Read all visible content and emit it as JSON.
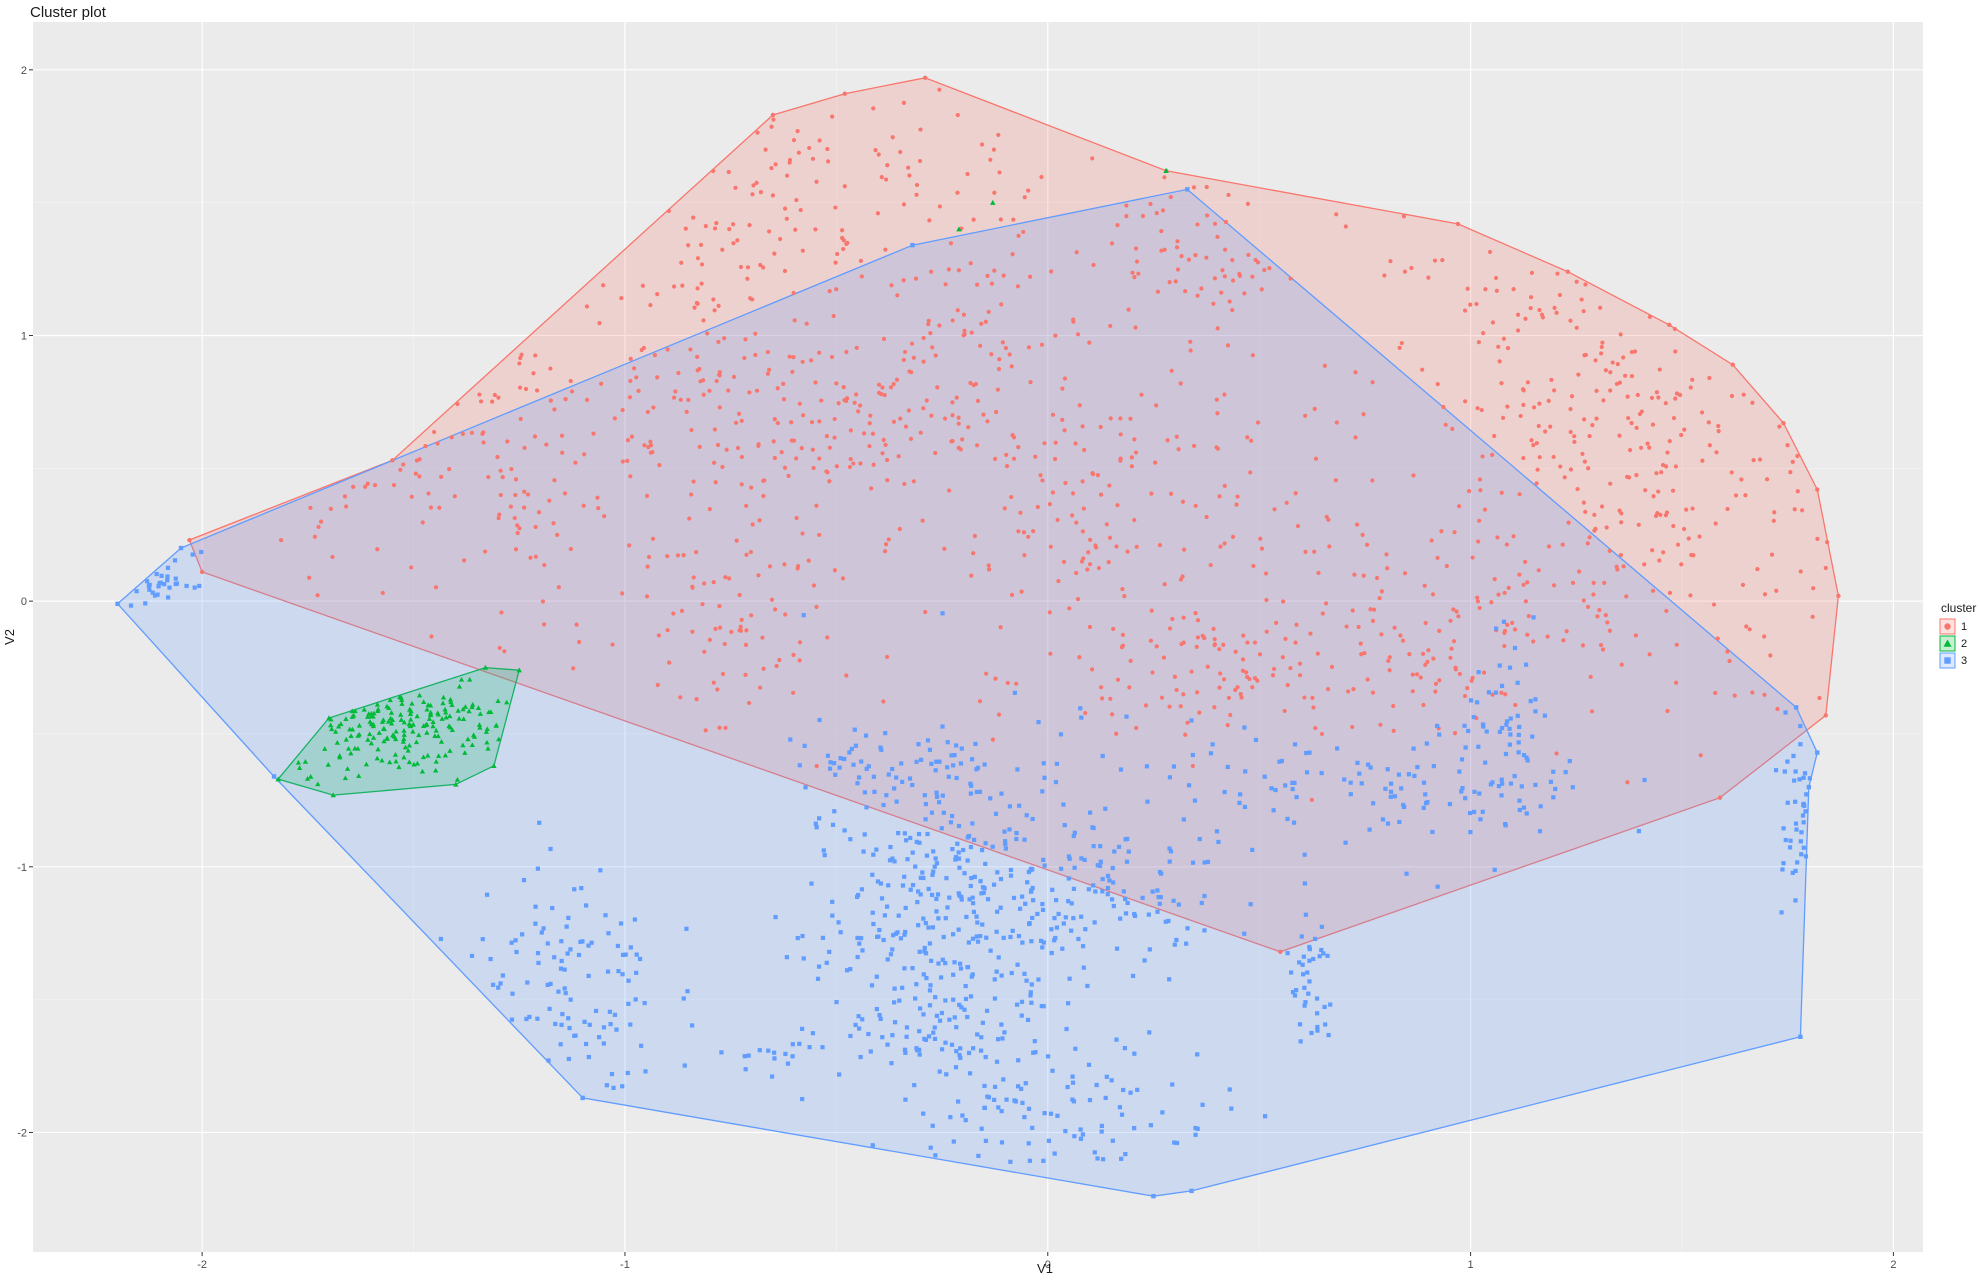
{
  "chart_data": {
    "type": "scatter",
    "title": "Cluster plot",
    "xlabel": "V1",
    "ylabel": "V2",
    "xlim": [
      -2.4,
      2.07
    ],
    "ylim": [
      -2.45,
      2.18
    ],
    "x_ticks": [
      -2,
      -1,
      0,
      1,
      2
    ],
    "y_ticks": [
      -2,
      -1,
      0,
      1,
      2
    ],
    "x_tick_labels": [
      "-2",
      "-1",
      "0",
      "1",
      "2"
    ],
    "y_tick_labels": [
      "-2",
      "-1",
      "0",
      "1",
      "2"
    ],
    "grid": true,
    "background": "#ebebeb",
    "legend": {
      "title": "cluster",
      "position": "right",
      "entries": [
        {
          "label": "1",
          "shape": "circle",
          "color": "#f8766d"
        },
        {
          "label": "2",
          "shape": "triangle",
          "color": "#00ba38"
        },
        {
          "label": "3",
          "shape": "square",
          "color": "#619cff"
        }
      ]
    },
    "clusters": [
      {
        "label": "1",
        "color": "#f8766d",
        "shape": "circle",
        "hull": [
          [
            -2.03,
            0.23
          ],
          [
            -1.55,
            0.53
          ],
          [
            -0.65,
            1.83
          ],
          [
            -0.48,
            1.91
          ],
          [
            -0.29,
            1.97
          ],
          [
            0.28,
            1.62
          ],
          [
            0.97,
            1.42
          ],
          [
            1.23,
            1.24
          ],
          [
            1.47,
            1.04
          ],
          [
            1.62,
            0.89
          ],
          [
            1.74,
            0.67
          ],
          [
            1.82,
            0.42
          ],
          [
            1.87,
            0.02
          ],
          [
            1.84,
            -0.43
          ],
          [
            1.59,
            -0.74
          ],
          [
            0.55,
            -1.32
          ],
          [
            -2.0,
            0.11
          ]
        ],
        "regions": [
          {
            "cx": -0.73,
            "cy": 1.35,
            "sx": 0.55,
            "sy": 0.45,
            "n": 260
          },
          {
            "cx": 1.35,
            "cy": 0.65,
            "sx": 0.32,
            "sy": 0.55,
            "n": 340
          },
          {
            "cx": -1.35,
            "cy": 0.48,
            "sx": 0.45,
            "sy": 0.28,
            "n": 150
          },
          {
            "cx": 0.15,
            "cy": 0.3,
            "sx": 0.22,
            "sy": 0.28,
            "n": 140
          },
          {
            "cx": 0.42,
            "cy": -0.28,
            "sx": 0.22,
            "sy": 0.16,
            "n": 110
          },
          {
            "cx": 0.95,
            "cy": -0.05,
            "sx": 0.18,
            "sy": 0.2,
            "n": 80
          },
          {
            "cx": -0.78,
            "cy": -0.15,
            "sx": 0.14,
            "sy": 0.22,
            "n": 70
          },
          {
            "cx": -0.3,
            "cy": 0.75,
            "sx": 0.18,
            "sy": 0.15,
            "n": 70
          },
          {
            "cx": 0.35,
            "cy": 1.3,
            "sx": 0.1,
            "sy": 0.2,
            "n": 60
          },
          {
            "cx": -0.6,
            "cy": 0.65,
            "sx": 0.22,
            "sy": 0.2,
            "n": 80
          }
        ]
      },
      {
        "label": "2",
        "color": "#00ba38",
        "shape": "triangle",
        "hull": [
          [
            -1.82,
            -0.67
          ],
          [
            -1.7,
            -0.44
          ],
          [
            -1.33,
            -0.25
          ],
          [
            -1.25,
            -0.26
          ],
          [
            -1.31,
            -0.62
          ],
          [
            -1.4,
            -0.69
          ],
          [
            -1.69,
            -0.73
          ]
        ],
        "regions": [
          {
            "cx": -1.53,
            "cy": -0.45,
            "sx": 0.13,
            "sy": 0.1,
            "n": 190
          }
        ],
        "outliers": [
          [
            -0.13,
            1.5
          ],
          [
            0.28,
            1.62
          ],
          [
            -0.21,
            1.4
          ]
        ]
      },
      {
        "label": "3",
        "color": "#619cff",
        "shape": "square",
        "hull": [
          [
            -2.2,
            -0.01
          ],
          [
            -2.05,
            0.2
          ],
          [
            -0.32,
            1.34
          ],
          [
            0.33,
            1.55
          ],
          [
            1.77,
            -0.4
          ],
          [
            1.82,
            -0.57
          ],
          [
            1.8,
            -0.7
          ],
          [
            1.78,
            -1.64
          ],
          [
            0.34,
            -2.22
          ],
          [
            0.25,
            -2.24
          ],
          [
            -1.1,
            -1.87
          ],
          [
            -1.83,
            -0.66
          ]
        ],
        "regions": [
          {
            "cx": -0.3,
            "cy": -1.3,
            "sx": 0.14,
            "sy": 0.35,
            "n": 320
          },
          {
            "cx": 0.0,
            "cy": -1.0,
            "sx": 0.12,
            "sy": 0.25,
            "n": 130
          },
          {
            "cx": 0.05,
            "cy": -1.9,
            "sx": 0.18,
            "sy": 0.15,
            "n": 90
          },
          {
            "cx": -1.15,
            "cy": -1.45,
            "sx": 0.12,
            "sy": 0.25,
            "n": 110
          },
          {
            "cx": 0.75,
            "cy": -0.7,
            "sx": 0.28,
            "sy": 0.12,
            "n": 110
          },
          {
            "cx": 1.1,
            "cy": -0.55,
            "sx": 0.06,
            "sy": 0.18,
            "n": 60
          },
          {
            "cx": 0.62,
            "cy": -1.45,
            "sx": 0.03,
            "sy": 0.15,
            "n": 40
          },
          {
            "cx": -0.35,
            "cy": -0.65,
            "sx": 0.15,
            "sy": 0.1,
            "n": 60
          },
          {
            "cx": 0.2,
            "cy": -1.1,
            "sx": 0.15,
            "sy": 0.12,
            "n": 50
          },
          {
            "cx": 1.78,
            "cy": -0.7,
            "sx": 0.03,
            "sy": 0.2,
            "n": 40
          },
          {
            "cx": -2.12,
            "cy": 0.08,
            "sx": 0.05,
            "sy": 0.05,
            "n": 30
          },
          {
            "cx": -0.65,
            "cy": -1.72,
            "sx": 0.05,
            "sy": 0.03,
            "n": 15
          }
        ]
      }
    ]
  }
}
